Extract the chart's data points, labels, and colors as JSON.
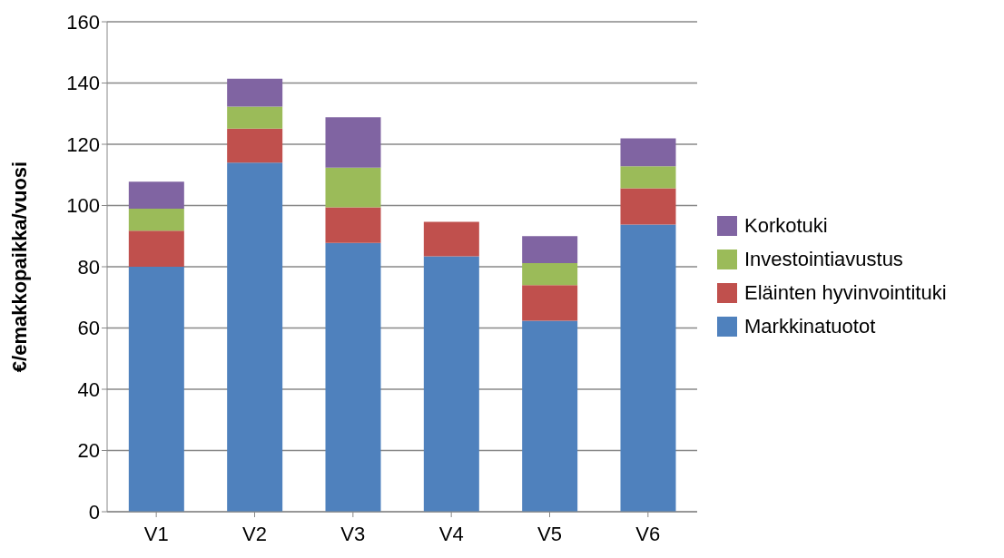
{
  "chart_data": {
    "type": "bar",
    "stacked": true,
    "ylabel": "€/emakkopaikka/vuosi",
    "categories": [
      "V1",
      "V2",
      "V3",
      "V4",
      "V5",
      "V6"
    ],
    "series": [
      {
        "name": "Markkinatuotot",
        "color": "#4f81bd",
        "values": [
          80,
          114,
          87.8,
          83.4,
          62.4,
          93.8
        ]
      },
      {
        "name": "Eläinten hyvinvointituki",
        "color": "#c0504d",
        "values": [
          11.8,
          11.1,
          11.6,
          11.3,
          11.6,
          11.8
        ]
      },
      {
        "name": "Investointiavustus",
        "color": "#9bbb59",
        "values": [
          7.2,
          7.2,
          13,
          null,
          7.2,
          7.2
        ]
      },
      {
        "name": "Korkotuki",
        "color": "#8064a2",
        "values": [
          8.8,
          9.1,
          16.4,
          null,
          8.8,
          9.1
        ]
      }
    ],
    "ylim": [
      0,
      160
    ],
    "yticks": [
      0,
      20,
      40,
      60,
      80,
      100,
      120,
      140,
      160
    ],
    "grid": "y",
    "legend": "right"
  }
}
